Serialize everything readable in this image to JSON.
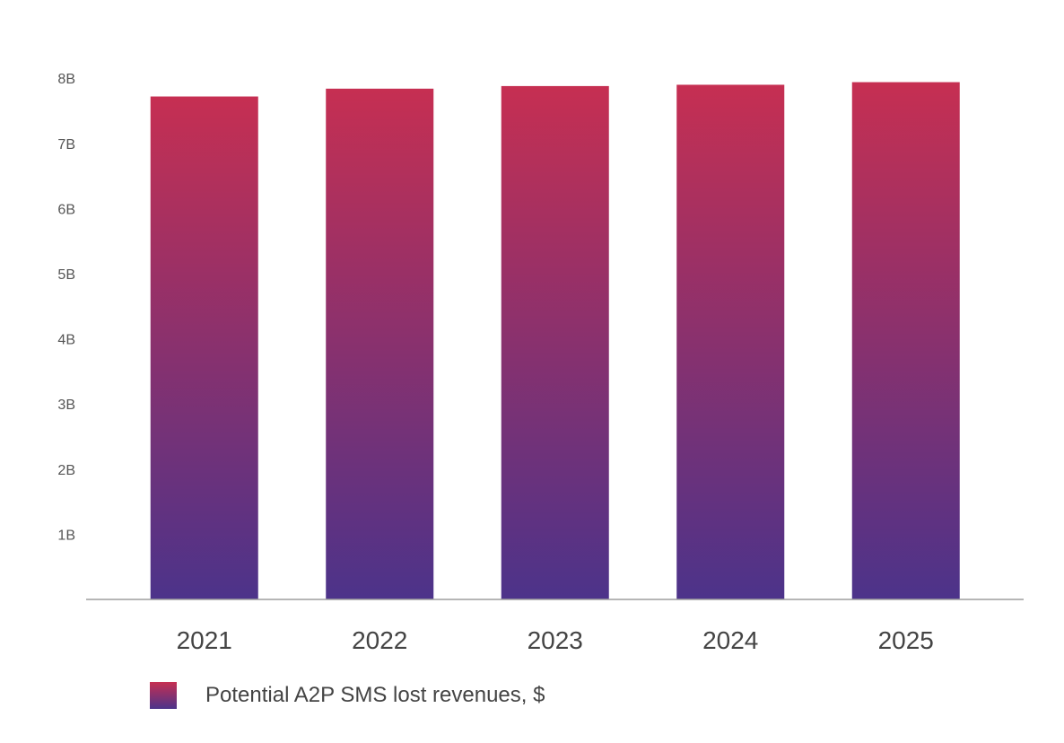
{
  "chart_data": {
    "type": "bar",
    "categories": [
      "2021",
      "2022",
      "2023",
      "2024",
      "2025"
    ],
    "series": [
      {
        "name": "Potential A2P SMS lost revenues, $",
        "values": [
          7.72,
          7.84,
          7.88,
          7.9,
          7.94
        ]
      }
    ],
    "value_unit": "billions",
    "ylim": [
      0,
      8
    ],
    "y_ticks": [
      {
        "value": 1,
        "label": "1B"
      },
      {
        "value": 2,
        "label": "2B"
      },
      {
        "value": 3,
        "label": "3B"
      },
      {
        "value": 4,
        "label": "4B"
      },
      {
        "value": 5,
        "label": "5B"
      },
      {
        "value": 6,
        "label": "6B"
      },
      {
        "value": 7,
        "label": "7B"
      },
      {
        "value": 8,
        "label": "8B"
      }
    ],
    "grid": false,
    "legend_position": "bottom-left",
    "colors": {
      "bar_gradient_top": "#c62f52",
      "bar_gradient_bottom": "#4c338a",
      "axis_line": "#9e9e9e"
    }
  }
}
